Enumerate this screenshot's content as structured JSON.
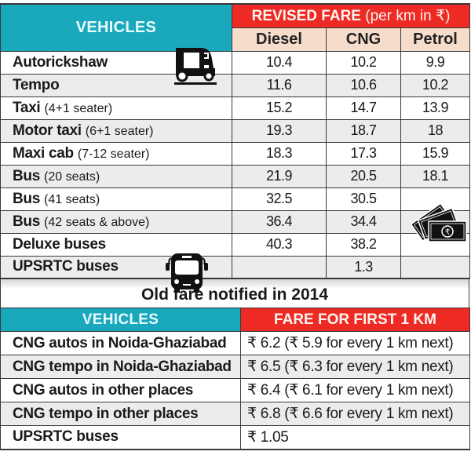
{
  "revised_table": {
    "vehicles_header": "VEHICLES",
    "fare_header_bold": "REVISED FARE",
    "fare_header_note": "(per km in ₹)",
    "fuel_columns": [
      "Diesel",
      "CNG",
      "Petrol"
    ],
    "rows": [
      {
        "name": "Autorickshaw",
        "note": "",
        "diesel": "10.4",
        "cng": "10.2",
        "petrol": "9.9"
      },
      {
        "name": "Tempo",
        "note": "",
        "diesel": "11.6",
        "cng": "10.6",
        "petrol": "10.2"
      },
      {
        "name": "Taxi",
        "note": "(4+1 seater)",
        "diesel": "15.2",
        "cng": "14.7",
        "petrol": "13.9"
      },
      {
        "name": "Motor taxi",
        "note": "(6+1 seater)",
        "diesel": "19.3",
        "cng": "18.7",
        "petrol": "18"
      },
      {
        "name": "Maxi cab",
        "note": "(7-12 seater)",
        "diesel": "18.3",
        "cng": "17.3",
        "petrol": "15.9"
      },
      {
        "name": "Bus",
        "note": "(20 seats)",
        "diesel": "21.9",
        "cng": "20.5",
        "petrol": "18.1"
      },
      {
        "name": "Bus",
        "note": "(41 seats)",
        "diesel": "32.5",
        "cng": "30.5",
        "petrol": ""
      },
      {
        "name": "Bus",
        "note": "(42 seats & above)",
        "diesel": "36.4",
        "cng": "34.4",
        "petrol": ""
      },
      {
        "name": "Deluxe buses",
        "note": "",
        "diesel": "40.3",
        "cng": "38.2",
        "petrol": ""
      },
      {
        "name": "UPSRTC buses",
        "note": "",
        "diesel": "",
        "cng": "1.3",
        "petrol": ""
      }
    ],
    "icons": [
      "autorickshaw-icon",
      "bus-icon",
      "rupee-notes-icon"
    ]
  },
  "old_table": {
    "title": "Old fare notified in 2014",
    "vehicles_header": "VEHICLES",
    "fare_header": "FARE FOR FIRST 1 KM",
    "rows": [
      {
        "name": "CNG autos in Noida-Ghaziabad",
        "fare": "₹ 6.2 (₹ 5.9 for every 1 km next)"
      },
      {
        "name": "CNG tempo in Noida-Ghaziabad",
        "fare": "₹ 6.5 (₹ 6.3 for every 1 km next)"
      },
      {
        "name": "CNG autos in other places",
        "fare": "₹ 6.4 (₹ 6.1 for every 1 km next)"
      },
      {
        "name": "CNG tempo in other places",
        "fare": "₹ 6.8 (₹ 6.6 for every 1 km next)"
      },
      {
        "name": "UPSRTC buses",
        "fare": "₹ 1.05"
      }
    ]
  },
  "colors": {
    "teal_header": "#1aa8bd",
    "red_header": "#ee2a24",
    "peach_subheader": "#f6dccb",
    "row_alt": "#ececec"
  }
}
